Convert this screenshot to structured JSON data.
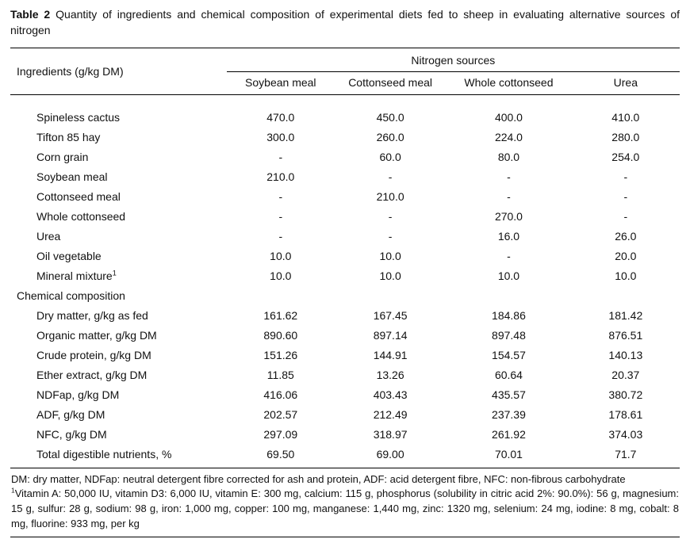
{
  "title": {
    "label": "Table 2",
    "text": "Quantity of ingredients and chemical composition of experimental diets fed to sheep in evaluating alternative sources of nitrogen"
  },
  "table": {
    "stub_header": "Ingredients (g/kg DM)",
    "group_header": "Nitrogen sources",
    "columns": [
      "Soybean meal",
      "Cottonseed meal",
      "Whole cottonseed",
      "Urea"
    ],
    "rows": [
      {
        "label": "Spineless cactus",
        "indent": true,
        "values": [
          "470.0",
          "450.0",
          "400.0",
          "410.0"
        ]
      },
      {
        "label": "Tifton 85 hay",
        "indent": true,
        "values": [
          "300.0",
          "260.0",
          "224.0",
          "280.0"
        ]
      },
      {
        "label": "Corn grain",
        "indent": true,
        "values": [
          "-",
          "60.0",
          "80.0",
          "254.0"
        ]
      },
      {
        "label": "Soybean meal",
        "indent": true,
        "values": [
          "210.0",
          "-",
          "-",
          "-"
        ]
      },
      {
        "label": "Cottonseed meal",
        "indent": true,
        "values": [
          "-",
          "210.0",
          "-",
          "-"
        ]
      },
      {
        "label": "Whole cottonseed",
        "indent": true,
        "values": [
          "-",
          "-",
          "270.0",
          "-"
        ]
      },
      {
        "label": "Urea",
        "indent": true,
        "values": [
          "-",
          "-",
          "16.0",
          "26.0"
        ]
      },
      {
        "label": "Oil vegetable",
        "indent": true,
        "values": [
          "10.0",
          "10.0",
          "-",
          "20.0"
        ]
      },
      {
        "label": "Mineral mixture",
        "sup": "1",
        "indent": true,
        "values": [
          "10.0",
          "10.0",
          "10.0",
          "10.0"
        ]
      },
      {
        "label": "Chemical composition",
        "section": true,
        "values": [
          "",
          "",
          "",
          ""
        ]
      },
      {
        "label": "Dry matter, g/kg as fed",
        "indent": true,
        "values": [
          "161.62",
          "167.45",
          "184.86",
          "181.42"
        ]
      },
      {
        "label": "Organic matter, g/kg DM",
        "indent": true,
        "values": [
          "890.60",
          "897.14",
          "897.48",
          "876.51"
        ]
      },
      {
        "label": "Crude protein, g/kg DM",
        "indent": true,
        "values": [
          "151.26",
          "144.91",
          "154.57",
          "140.13"
        ]
      },
      {
        "label": "Ether extract, g/kg DM",
        "indent": true,
        "values": [
          "11.85",
          "13.26",
          "60.64",
          "20.37"
        ]
      },
      {
        "label": "NDFap, g/kg DM",
        "indent": true,
        "values": [
          "416.06",
          "403.43",
          "435.57",
          "380.72"
        ]
      },
      {
        "label": "ADF, g/kg DM",
        "indent": true,
        "values": [
          "202.57",
          "212.49",
          "237.39",
          "178.61"
        ]
      },
      {
        "label": "NFC, g/kg DM",
        "indent": true,
        "values": [
          "297.09",
          "318.97",
          "261.92",
          "374.03"
        ]
      },
      {
        "label": "Total digestible nutrients, %",
        "indent": true,
        "values": [
          "69.50",
          "69.00",
          "70.01",
          "71.7"
        ]
      }
    ]
  },
  "footnotes": [
    {
      "text": "DM: dry matter, NDFap: neutral detergent fibre corrected for ash and protein, ADF: acid detergent fibre, NFC: non-fibrous carbohydrate"
    },
    {
      "sup": "1",
      "text": "Vitamin A: 50,000 IU, vitamin D3: 6,000 IU, vitamin E: 300 mg, calcium: 115 g, phosphorus (solubility in citric acid 2%: 90.0%): 56 g, magnesium: 15 g, sulfur: 28 g, sodium: 98 g, iron: 1,000 mg, copper: 100 mg, manganese: 1,440 mg, zinc: 1320 mg, selenium: 24 mg, iodine: 8 mg, cobalt: 8 mg, fluorine: 933 mg, per kg"
    }
  ]
}
